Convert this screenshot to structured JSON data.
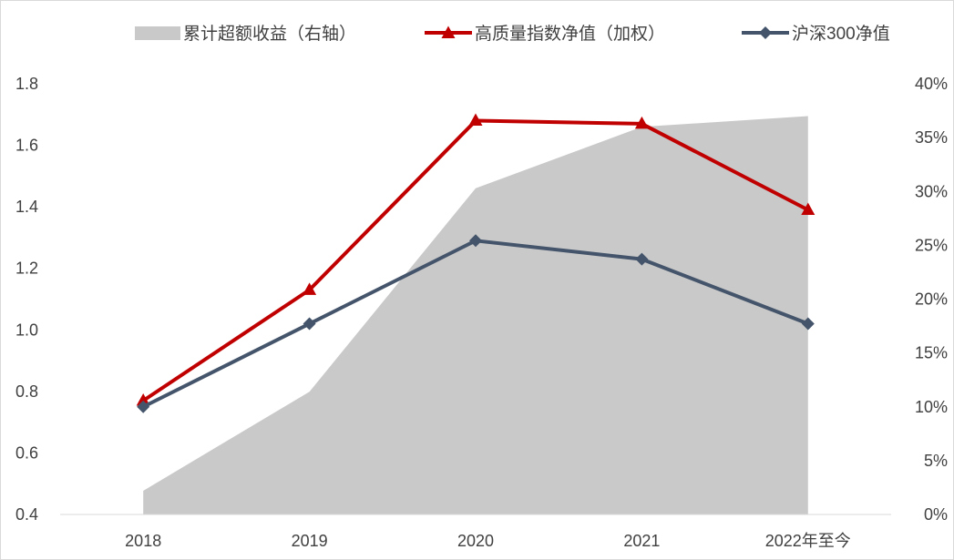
{
  "chart_data": {
    "type": "line",
    "categories": [
      "2018",
      "2019",
      "2020",
      "2021",
      "2022年至今"
    ],
    "series": [
      {
        "name": "累计超额收益（右轴）",
        "type": "area",
        "axis": "right",
        "color": "#C9C9C9",
        "values": [
          2.2,
          11.4,
          30.3,
          36.0,
          37.0
        ]
      },
      {
        "name": "高质量指数净值（加权）",
        "type": "line",
        "axis": "left",
        "color": "#C00000",
        "marker": "triangle",
        "values": [
          0.77,
          1.13,
          1.68,
          1.67,
          1.39
        ]
      },
      {
        "name": "沪深300净值",
        "type": "line",
        "axis": "left",
        "color": "#44546A",
        "marker": "diamond",
        "values": [
          0.75,
          1.02,
          1.29,
          1.23,
          1.02
        ]
      }
    ],
    "y_left": {
      "ylim": [
        0.4,
        1.8
      ],
      "tick_labels": [
        "0.4",
        "0.6",
        "0.8",
        "1.0",
        "1.2",
        "1.4",
        "1.6",
        "1.8"
      ]
    },
    "y_right": {
      "ylim": [
        0,
        40
      ],
      "tick_labels": [
        "0%",
        "5%",
        "10%",
        "15%",
        "20%",
        "25%",
        "30%",
        "35%",
        "40%"
      ]
    },
    "grid": false,
    "legend_position": "top",
    "axis_line_color": "#D9D9D9",
    "border_color": "#D9D9D9"
  }
}
